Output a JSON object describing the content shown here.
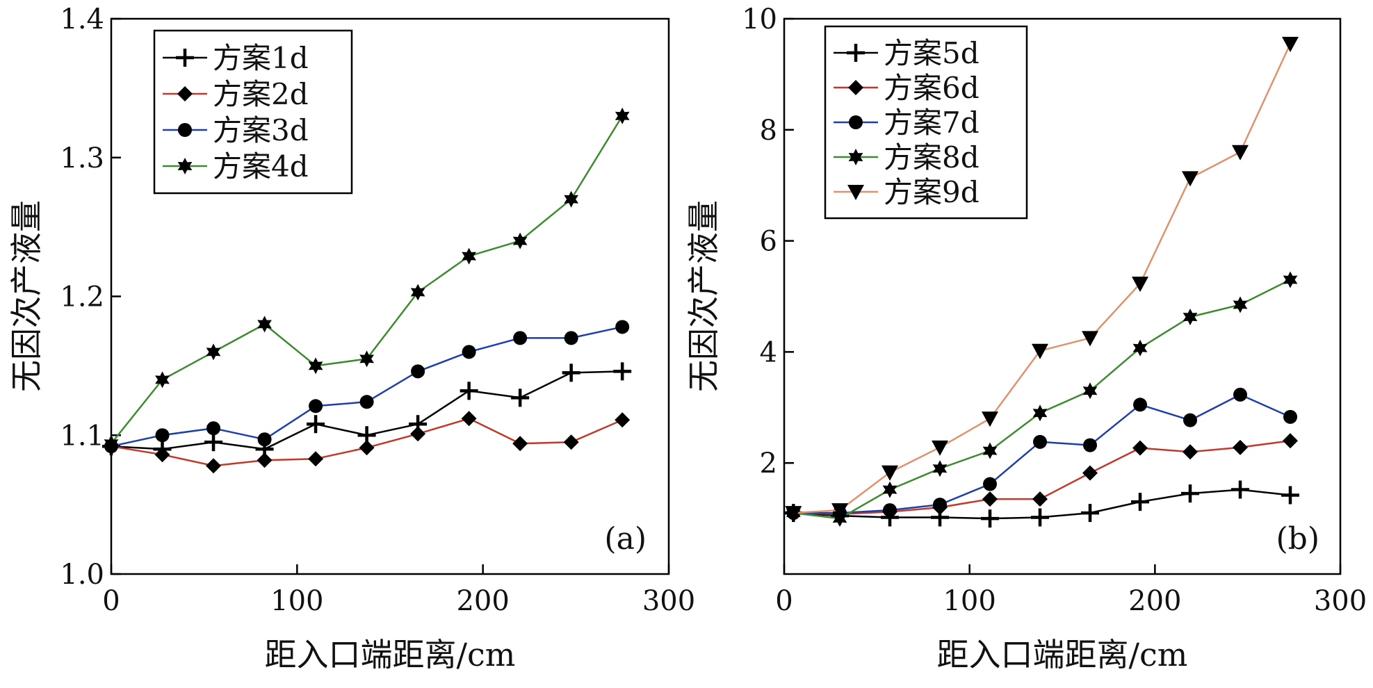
{
  "chart_data": [
    {
      "type": "line",
      "xlabel": "距入口端距离/cm",
      "ylabel": "无因次产液量",
      "panel_label": "(a)",
      "xlim": [
        0,
        300
      ],
      "ylim": [
        1.0,
        1.4
      ],
      "xticks": [
        0,
        100,
        200,
        300
      ],
      "xtick_labels": [
        "0",
        "100",
        "200",
        "300"
      ],
      "yticks": [
        1.0,
        1.1,
        1.2,
        1.3,
        1.4
      ],
      "ytick_labels": [
        "1.0",
        "1.1",
        "1.2",
        "1.3",
        "1.4"
      ],
      "grid": false,
      "legend_position": "top-left",
      "x": [
        0,
        27.5,
        55,
        82.5,
        110,
        137.5,
        165,
        192.5,
        220,
        247.5,
        275
      ],
      "series": [
        {
          "name": "方案1d",
          "color": "#000000",
          "marker": "plus",
          "values": [
            1.092,
            1.09,
            1.095,
            1.09,
            1.108,
            1.1,
            1.108,
            1.132,
            1.127,
            1.145,
            1.146
          ]
        },
        {
          "name": "方案2d",
          "color": "#c0392b",
          "marker": "diamond",
          "values": [
            1.092,
            1.086,
            1.078,
            1.082,
            1.083,
            1.091,
            1.101,
            1.112,
            1.094,
            1.095,
            1.111
          ]
        },
        {
          "name": "方案3d",
          "color": "#1f3fa8",
          "marker": "circle",
          "values": [
            1.092,
            1.1,
            1.105,
            1.097,
            1.121,
            1.124,
            1.146,
            1.16,
            1.17,
            1.17,
            1.178
          ]
        },
        {
          "name": "方案4d",
          "color": "#3c8c2f",
          "marker": "star",
          "values": [
            1.094,
            1.14,
            1.16,
            1.18,
            1.15,
            1.155,
            1.203,
            1.229,
            1.24,
            1.27,
            1.33
          ]
        }
      ]
    },
    {
      "type": "line",
      "xlabel": "距入口端距离/cm",
      "ylabel": "无因次产液量",
      "panel_label": "(b)",
      "xlim": [
        0,
        300
      ],
      "ylim": [
        0,
        10
      ],
      "xticks": [
        0,
        100,
        200,
        300
      ],
      "xtick_labels": [
        "0",
        "100",
        "200",
        "300"
      ],
      "yticks": [
        2,
        4,
        6,
        8,
        10
      ],
      "ytick_labels": [
        "2",
        "4",
        "6",
        "8",
        "10"
      ],
      "grid": false,
      "legend_position": "top-left",
      "x": [
        5,
        30,
        57,
        84,
        111,
        138,
        165,
        192,
        219,
        246,
        273
      ],
      "series": [
        {
          "name": "方案5d",
          "color": "#000000",
          "marker": "plus",
          "values": [
            1.1,
            1.05,
            1.02,
            1.02,
            1.0,
            1.02,
            1.1,
            1.3,
            1.45,
            1.52,
            1.42
          ]
        },
        {
          "name": "方案6d",
          "color": "#c0392b",
          "marker": "diamond",
          "values": [
            1.1,
            1.08,
            1.12,
            1.2,
            1.35,
            1.35,
            1.82,
            2.27,
            2.2,
            2.28,
            2.4
          ]
        },
        {
          "name": "方案7d",
          "color": "#1f3fa8",
          "marker": "circle",
          "values": [
            1.1,
            1.1,
            1.15,
            1.25,
            1.62,
            2.38,
            2.32,
            3.05,
            2.77,
            3.23,
            2.83
          ]
        },
        {
          "name": "方案8d",
          "color": "#3c8c2f",
          "marker": "star",
          "values": [
            1.1,
            1.0,
            1.52,
            1.9,
            2.22,
            2.9,
            3.3,
            4.07,
            4.63,
            4.85,
            5.3
          ]
        },
        {
          "name": "方案9d",
          "color": "#e0926c",
          "marker": "triangle-down",
          "values": [
            1.1,
            1.15,
            1.83,
            2.28,
            2.8,
            4.02,
            4.25,
            5.23,
            7.13,
            7.6,
            9.55
          ]
        }
      ]
    }
  ]
}
